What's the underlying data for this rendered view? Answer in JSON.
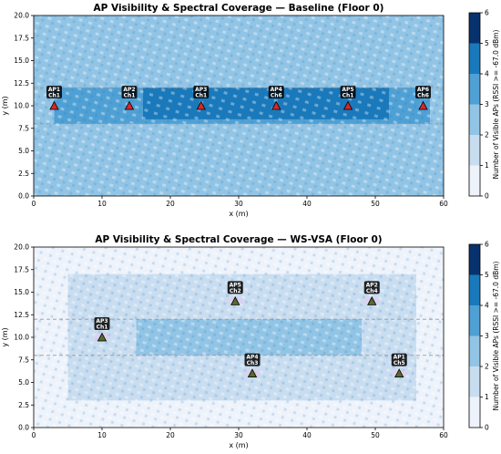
{
  "colors": {
    "levels": [
      "#eef3fb",
      "#c9ddf0",
      "#92c4e5",
      "#4fa0d4",
      "#1a79bb",
      "#08326e"
    ],
    "ap_baseline": "#d62728",
    "ap_wsvsa": "#556b2f",
    "ap_label_bg": "#000000",
    "ap_label_fg": "#ffffff",
    "dash": "#999999"
  },
  "chart_data": [
    {
      "type": "heatmap",
      "title": "AP Visibility & Spectral Coverage — Baseline (Floor 0)",
      "xlabel": "x (m)",
      "ylabel": "y (m)",
      "xlim": [
        0,
        60
      ],
      "ylim": [
        0,
        20
      ],
      "xticks": [
        "0",
        "10",
        "20",
        "30",
        "40",
        "50",
        "60"
      ],
      "yticks": [
        "0.0",
        "2.5",
        "5.0",
        "7.5",
        "10.0",
        "12.5",
        "15.0",
        "17.5",
        "20.0"
      ],
      "colorbar": {
        "label": "Number of Visible APs (RSSI >= -67.0 dBm)",
        "ticks": [
          "0",
          "1",
          "2",
          "3",
          "4",
          "5",
          "6"
        ]
      },
      "dashed_lines_y": [
        8,
        12
      ],
      "coverage_zones": [
        {
          "x": [
            0,
            60
          ],
          "y": [
            0,
            20
          ],
          "level": 2
        },
        {
          "x": [
            3,
            58
          ],
          "y": [
            8,
            12
          ],
          "level": 3
        },
        {
          "x": [
            16,
            52
          ],
          "y": [
            8.5,
            12
          ],
          "level": 4
        }
      ],
      "aps": [
        {
          "name": "AP1",
          "channel": "Ch1",
          "x": 3,
          "y": 10
        },
        {
          "name": "AP2",
          "channel": "Ch1",
          "x": 14,
          "y": 10
        },
        {
          "name": "AP3",
          "channel": "Ch1",
          "x": 24.5,
          "y": 10
        },
        {
          "name": "AP4",
          "channel": "Ch6",
          "x": 35.5,
          "y": 10
        },
        {
          "name": "AP5",
          "channel": "Ch1",
          "x": 46,
          "y": 10
        },
        {
          "name": "AP6",
          "channel": "Ch6",
          "x": 57,
          "y": 10
        }
      ]
    },
    {
      "type": "heatmap",
      "title": "AP Visibility & Spectral Coverage — WS-VSA (Floor 0)",
      "xlabel": "x (m)",
      "ylabel": "y (m)",
      "xlim": [
        0,
        60
      ],
      "ylim": [
        0,
        20
      ],
      "xticks": [
        "0",
        "10",
        "20",
        "30",
        "40",
        "50",
        "60"
      ],
      "yticks": [
        "0.0",
        "2.5",
        "5.0",
        "7.5",
        "10.0",
        "12.5",
        "15.0",
        "17.5",
        "20.0"
      ],
      "colorbar": {
        "label": "Number of Visible APs (RSSI >= -67.0 dBm)",
        "ticks": [
          "0",
          "1",
          "2",
          "3",
          "4",
          "5",
          "6"
        ]
      },
      "dashed_lines_y": [
        8,
        12
      ],
      "coverage_zones": [
        {
          "x": [
            0,
            60
          ],
          "y": [
            0,
            20
          ],
          "level": 0
        },
        {
          "x": [
            5,
            56
          ],
          "y": [
            3,
            17
          ],
          "level": 1
        },
        {
          "x": [
            15,
            48
          ],
          "y": [
            8,
            12
          ],
          "level": 2
        }
      ],
      "aps": [
        {
          "name": "AP3",
          "channel": "Ch1",
          "x": 10,
          "y": 10
        },
        {
          "name": "AP5",
          "channel": "Ch2",
          "x": 29.5,
          "y": 14
        },
        {
          "name": "AP2",
          "channel": "Ch4",
          "x": 49.5,
          "y": 14
        },
        {
          "name": "AP4",
          "channel": "Ch3",
          "x": 32,
          "y": 6
        },
        {
          "name": "AP1",
          "channel": "Ch5",
          "x": 53.5,
          "y": 6
        }
      ]
    }
  ]
}
